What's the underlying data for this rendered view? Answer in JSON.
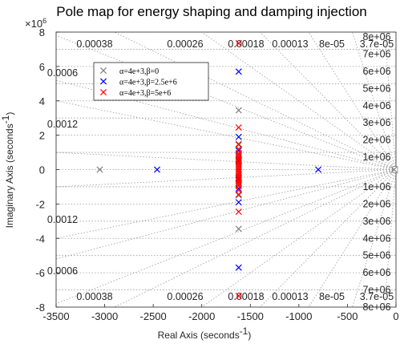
{
  "chart_data": {
    "type": "scatter",
    "title": "Pole map for energy shaping and damping injection",
    "xlabel": "Real Axis (seconds",
    "xlabel_sup": "-1",
    "xlabel_end": ")",
    "ylabel": "Imaginary Axis (seconds",
    "ylabel_sup": "-1",
    "ylabel_end": ")",
    "y_exponent_base": "×10",
    "y_exponent_power": "6",
    "xlim": [
      -3500,
      0
    ],
    "ylim": [
      -8,
      8
    ],
    "y_units_note": "y values in units of 1e6",
    "x_ticks": [
      "-3500",
      "-3000",
      "-2500",
      "-2000",
      "-1500",
      "-1000",
      "-500",
      "0"
    ],
    "y_ticks": [
      "-8",
      "-6",
      "-4",
      "-2",
      "0",
      "2",
      "4",
      "6",
      "8"
    ],
    "damping_labels": {
      "top_row": [
        "0.00038",
        "0.00026",
        "0.00018",
        "0.00013",
        "8e-05",
        "3.7e-05"
      ],
      "left_col_upper": [
        "0.0006",
        "0.0012"
      ],
      "left_col_lower": [
        "0.0012",
        "0.0006"
      ],
      "bottom_row": [
        "0.00038",
        "0.00026",
        "0.00018",
        "0.00013",
        "8e-05",
        "3.7e-05"
      ]
    },
    "frequency_labels": {
      "upper": [
        "8e+06",
        "7e+06",
        "6e+06",
        "5e+06",
        "4e+06",
        "3e+06",
        "2e+06",
        "1e+06"
      ],
      "lower": [
        "1e+06",
        "2e+06",
        "3e+06",
        "4e+06",
        "5e+06",
        "6e+06",
        "7e+06",
        "8e+06"
      ]
    },
    "legend_placement": "upper-left",
    "grid": true,
    "series": [
      {
        "name": "α=4e+3,β=0",
        "color": "#808080",
        "marker": "x",
        "points": [
          {
            "x": -3050,
            "y": 0
          },
          {
            "x": -20,
            "y": 0
          },
          {
            "x": -1620,
            "y": 3.45
          },
          {
            "x": -1620,
            "y": -3.45
          },
          {
            "x": -1620,
            "y": 1.5
          },
          {
            "x": -1620,
            "y": -1.5
          },
          {
            "x": -1620,
            "y": 0.6
          },
          {
            "x": -1620,
            "y": -0.6
          }
        ]
      },
      {
        "name": "α=4e+3,β=2.5e+6",
        "color": "#0000ff",
        "marker": "x",
        "points": [
          {
            "x": -2460,
            "y": 0
          },
          {
            "x": -800,
            "y": 0
          },
          {
            "x": -1620,
            "y": 5.7
          },
          {
            "x": -1620,
            "y": -5.7
          },
          {
            "x": -1620,
            "y": 1.9
          },
          {
            "x": -1620,
            "y": -1.9
          },
          {
            "x": -1620,
            "y": 1.1
          },
          {
            "x": -1620,
            "y": -1.1
          },
          {
            "x": -1620,
            "y": 0.5
          },
          {
            "x": -1620,
            "y": -0.5
          }
        ]
      },
      {
        "name": "α=4e+3,β=5e+6",
        "color": "#ff0000",
        "marker": "x",
        "points": [
          {
            "x": -1620,
            "y": 7.35
          },
          {
            "x": -1620,
            "y": -7.35
          },
          {
            "x": -1620,
            "y": 2.45
          },
          {
            "x": -1620,
            "y": -2.45
          },
          {
            "x": -1620,
            "y": 1.45
          },
          {
            "x": -1620,
            "y": -1.45
          },
          {
            "x": -1620,
            "y": 1.2
          },
          {
            "x": -1620,
            "y": -1.2
          },
          {
            "x": -1620,
            "y": 0.95
          },
          {
            "x": -1620,
            "y": -0.95
          },
          {
            "x": -1620,
            "y": 0.85
          },
          {
            "x": -1620,
            "y": -0.85
          },
          {
            "x": -1620,
            "y": 0.75
          },
          {
            "x": -1620,
            "y": -0.75
          },
          {
            "x": -1620,
            "y": 0.65
          },
          {
            "x": -1620,
            "y": -0.65
          },
          {
            "x": -1620,
            "y": 0.55
          },
          {
            "x": -1620,
            "y": -0.55
          },
          {
            "x": -1620,
            "y": 0.45
          },
          {
            "x": -1620,
            "y": -0.45
          },
          {
            "x": -1620,
            "y": 0.35
          },
          {
            "x": -1620,
            "y": -0.35
          },
          {
            "x": -1620,
            "y": 0.25
          },
          {
            "x": -1620,
            "y": -0.25
          },
          {
            "x": -1620,
            "y": 0.15
          },
          {
            "x": -1620,
            "y": -0.15
          },
          {
            "x": -1620,
            "y": 0.05
          },
          {
            "x": -1620,
            "y": -0.05
          }
        ]
      }
    ]
  }
}
